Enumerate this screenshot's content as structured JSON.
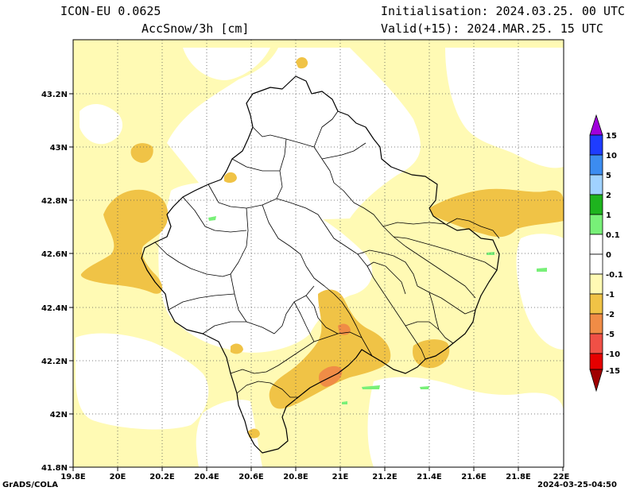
{
  "header": {
    "model": "ICON-EU 0.0625",
    "field": "AccSnow/3h [cm]",
    "init": "Initialisation: 2024.03.25. 00 UTC",
    "valid": "Valid(+15): 2024.MAR.25. 15 UTC"
  },
  "axes": {
    "x_ticks": [
      "19.8E",
      "20E",
      "20.2E",
      "20.4E",
      "20.6E",
      "20.8E",
      "21E",
      "21.2E",
      "21.4E",
      "21.6E",
      "21.8E",
      "22E"
    ],
    "y_ticks": [
      "43.2N",
      "43N",
      "42.8N",
      "42.6N",
      "42.4N",
      "42.2N",
      "42N",
      "41.8N"
    ]
  },
  "colorbar": {
    "labels": [
      "15",
      "10",
      "5",
      "2",
      "1",
      "0.1",
      "0",
      "-0.1",
      "-1",
      "-2",
      "-5",
      "-10",
      "-15"
    ],
    "colors": {
      "purple": "#a000dc",
      "blue": "#1e3cff",
      "mid_blue": "#3c8cf0",
      "light_blue": "#a0d2ff",
      "green": "#1eb41e",
      "light_green": "#78f078",
      "white": "#ffffff",
      "pale_yellow": "#fffab4",
      "yellow_orange": "#f0c346",
      "orange": "#f08c46",
      "light_red": "#f05046",
      "red": "#e60000",
      "dark_red": "#a00000"
    }
  },
  "footer": {
    "left": "GrADS/COLA",
    "right": "2024-03-25-04:50"
  }
}
